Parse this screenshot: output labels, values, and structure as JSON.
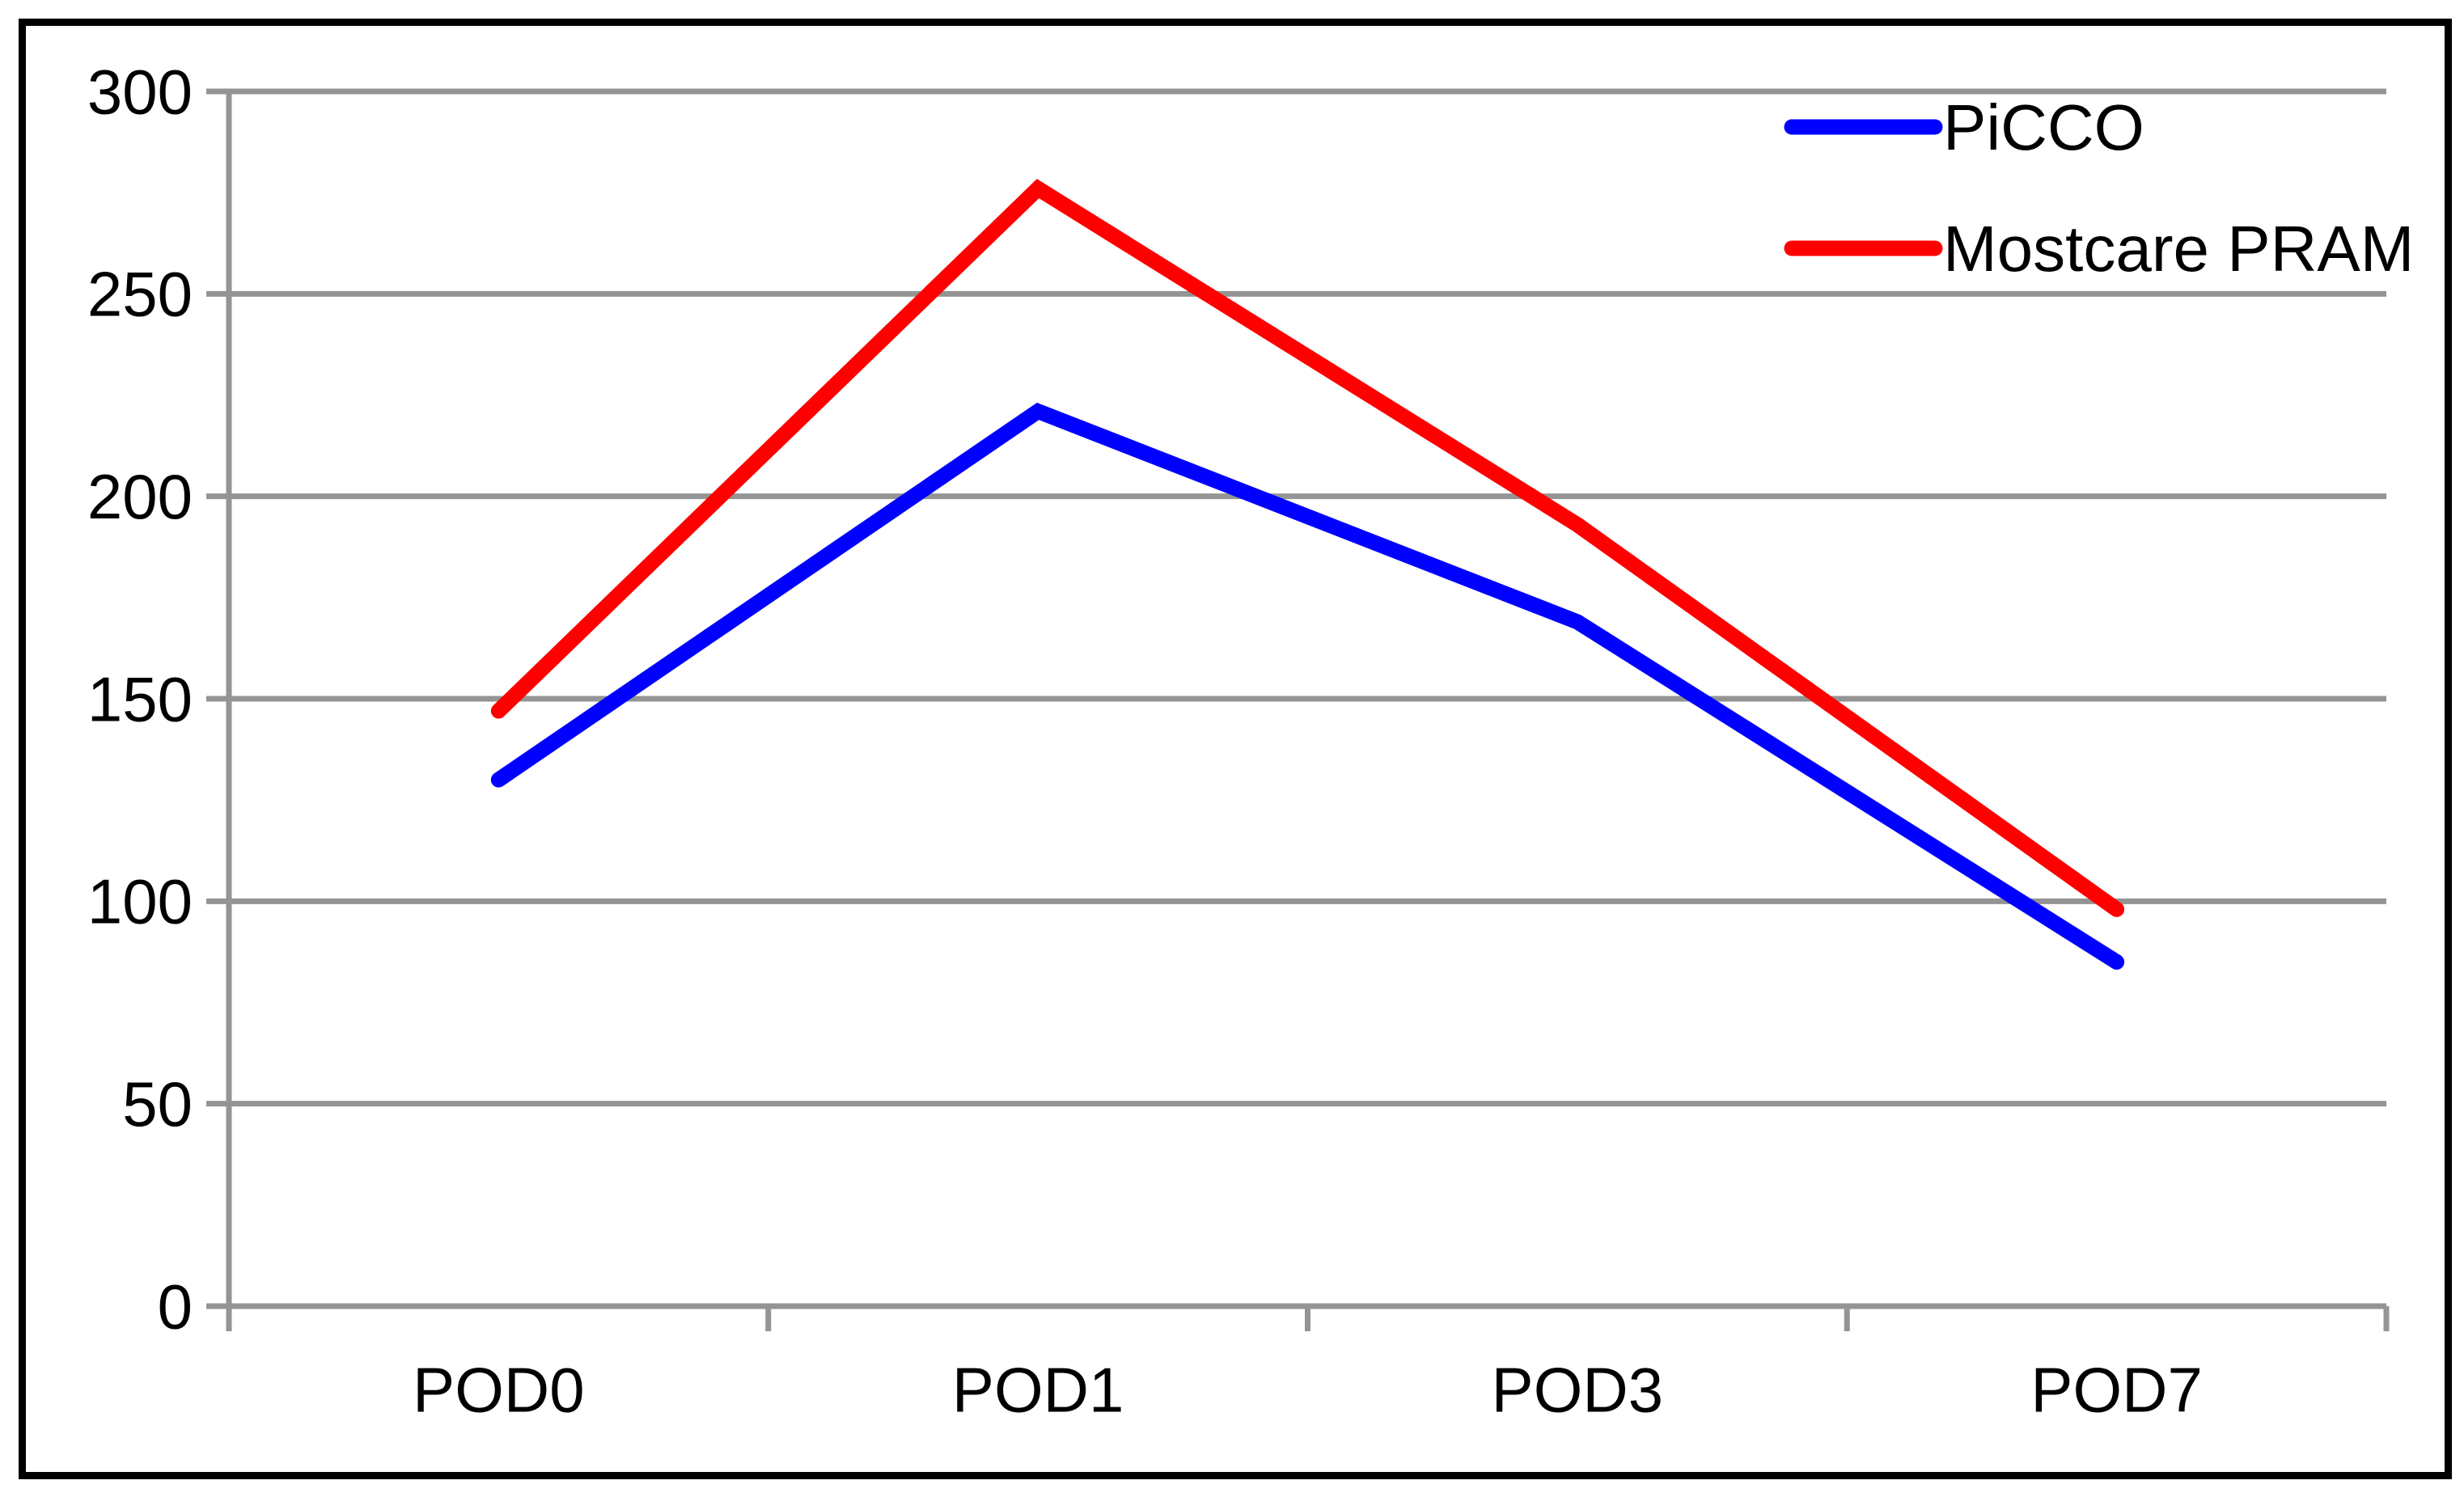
{
  "chart_data": {
    "type": "line",
    "categories": [
      "POD0",
      "POD1",
      "POD3",
      "POD7"
    ],
    "series": [
      {
        "name": "PiCCO",
        "color": "#0000ff",
        "values": [
          130,
          221,
          169,
          85
        ]
      },
      {
        "name": "Mostcare PRAM",
        "color": "#ff0000",
        "values": [
          147,
          276,
          193,
          98
        ]
      }
    ],
    "title": "",
    "xlabel": "",
    "ylabel": "",
    "ylim": [
      0,
      300
    ],
    "yticks": [
      300,
      250,
      200,
      150,
      100,
      50,
      0
    ],
    "grid": "horizontal-gridlines-on",
    "legend_position": "top-right",
    "colors": {
      "gridline": "#949494",
      "axis": "#949494",
      "frame_border": "#000000",
      "text": "#000000",
      "background": "#ffffff"
    }
  }
}
